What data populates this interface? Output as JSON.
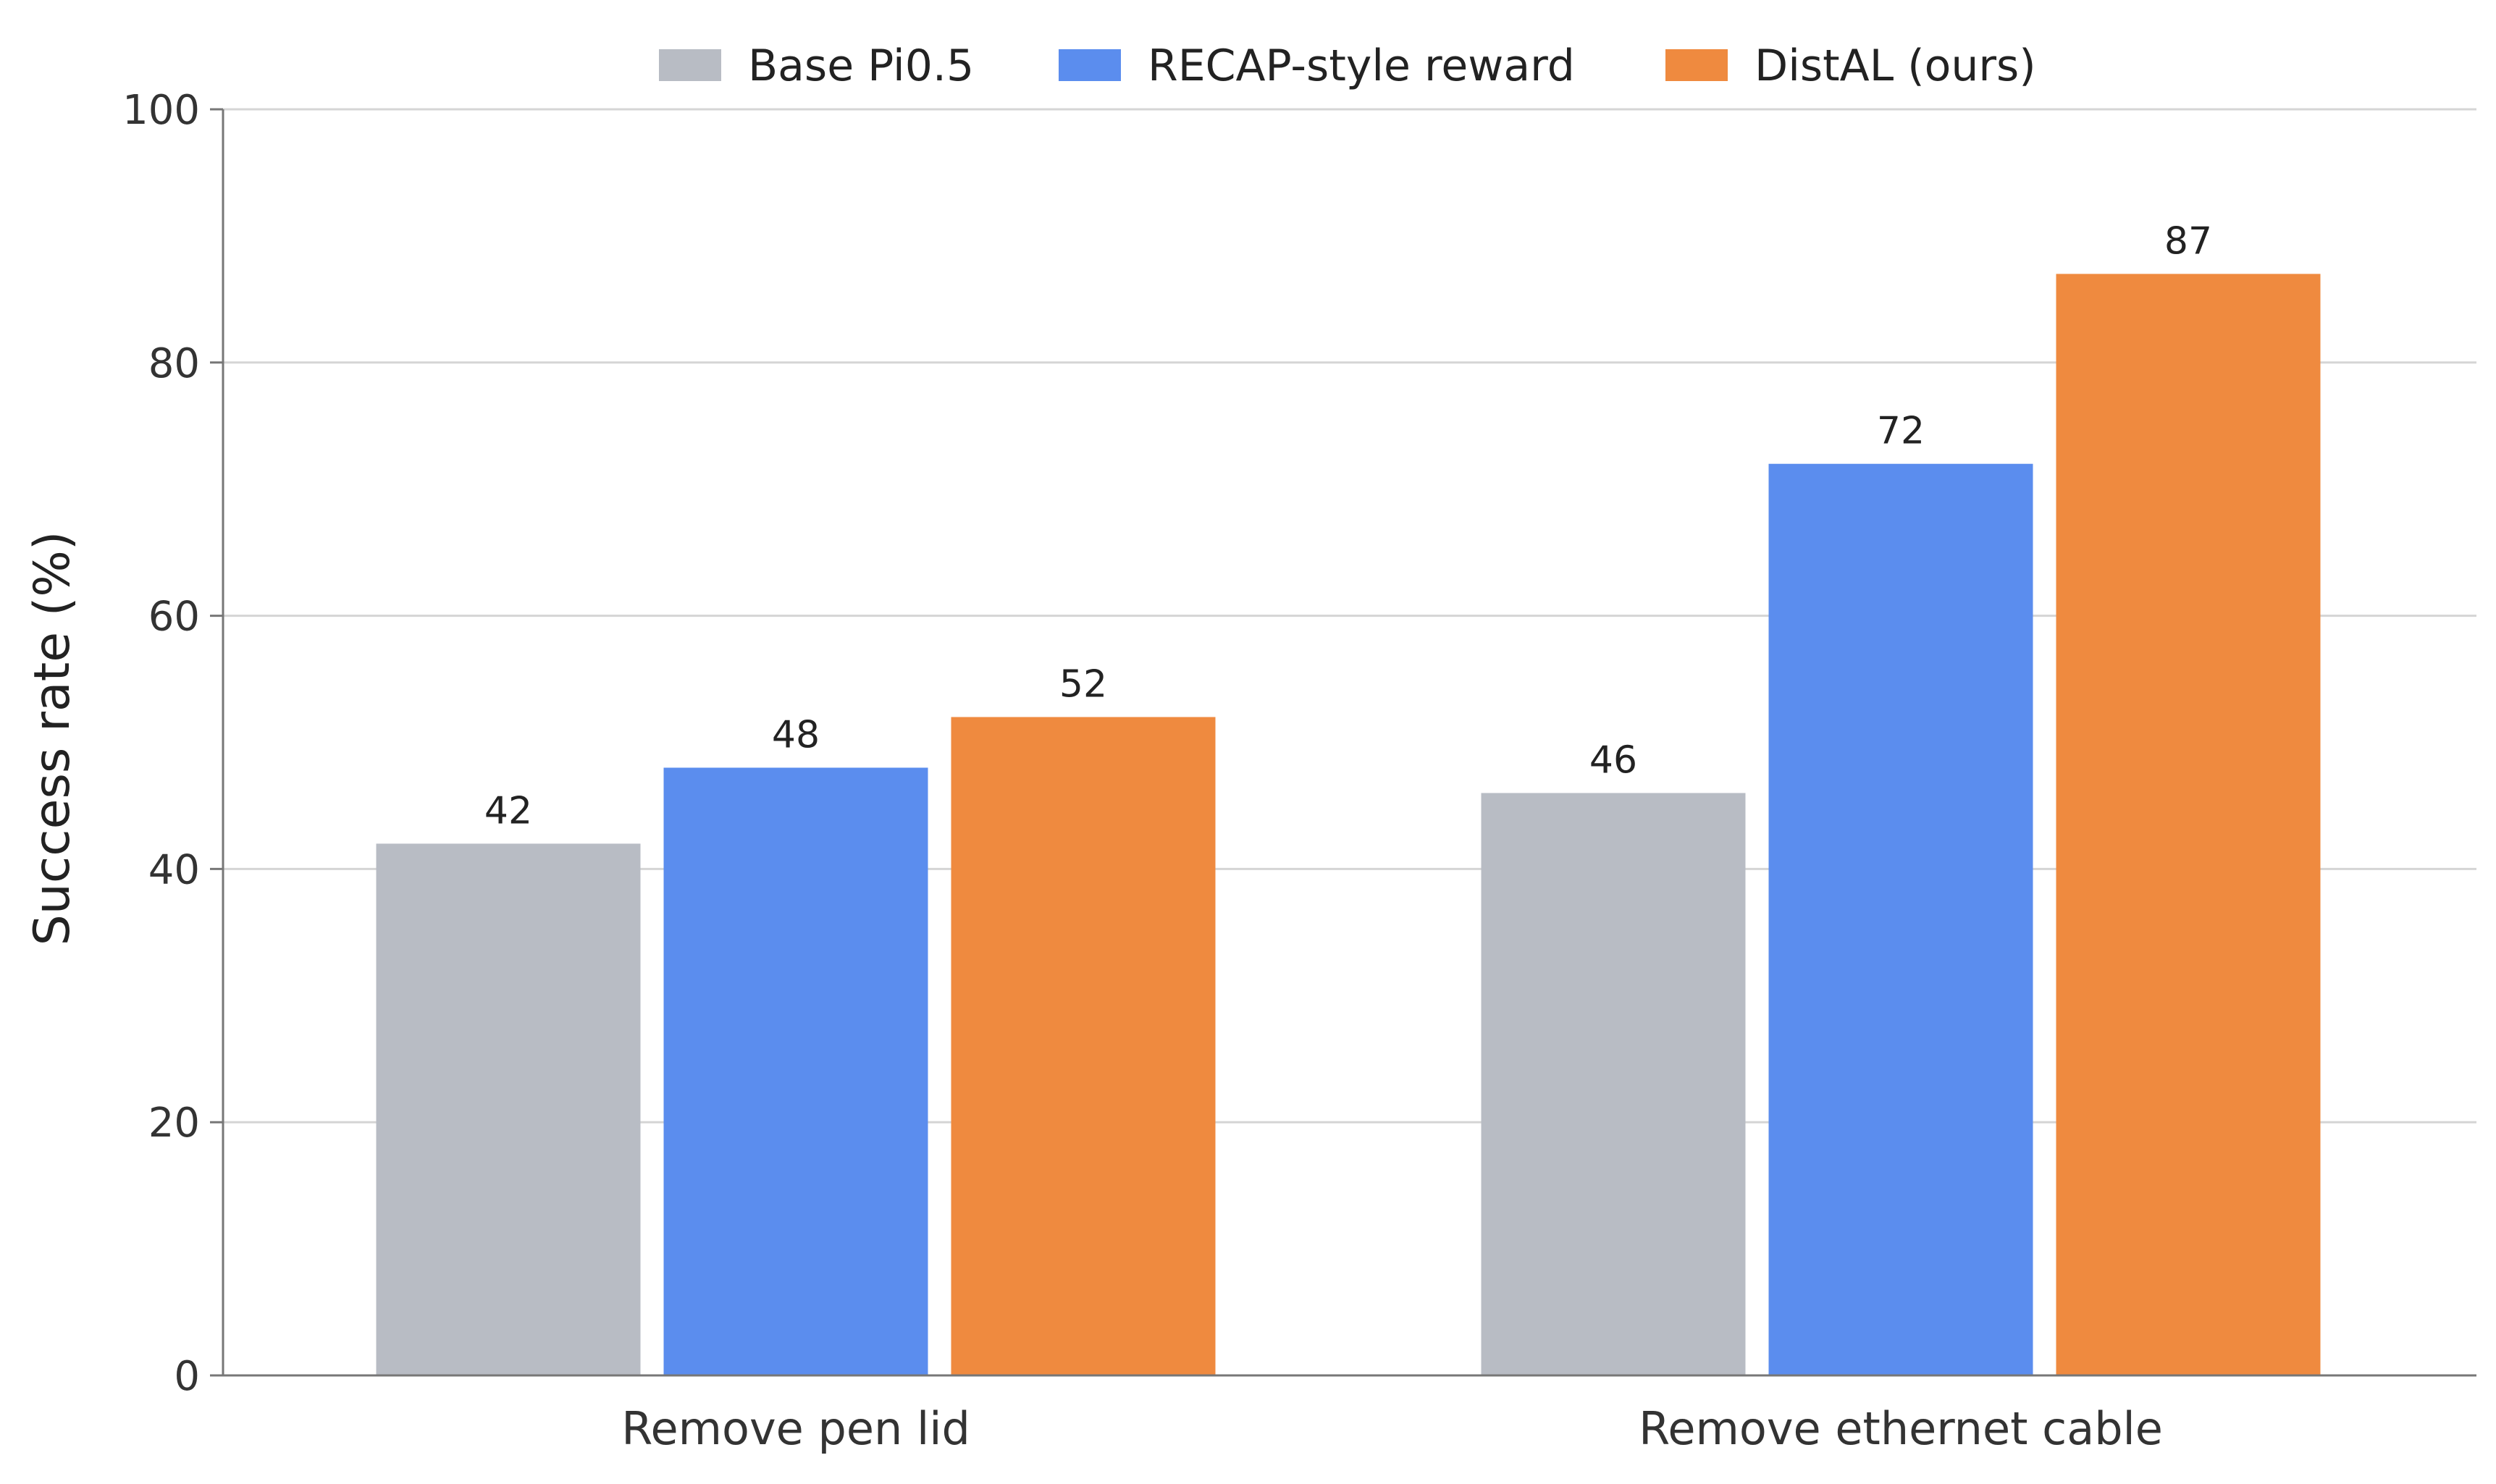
{
  "chart_data": {
    "type": "bar",
    "title": "",
    "xlabel": "",
    "ylabel": "Success rate (%)",
    "ylim": [
      0,
      100
    ],
    "yticks": [
      0,
      20,
      40,
      60,
      80,
      100
    ],
    "grid": "horizontal",
    "legend_position": "top-center",
    "categories": [
      "Remove pen lid",
      "Remove ethernet cable"
    ],
    "series": [
      {
        "name": "Base Pi0.5",
        "color": "#B8BCC4",
        "values": [
          42,
          46
        ]
      },
      {
        "name": "RECAP-style reward",
        "color": "#5B8DEE",
        "values": [
          48,
          72
        ]
      },
      {
        "name": "DistAL (ours)",
        "color": "#EF8A3F",
        "values": [
          52,
          87
        ]
      }
    ]
  }
}
